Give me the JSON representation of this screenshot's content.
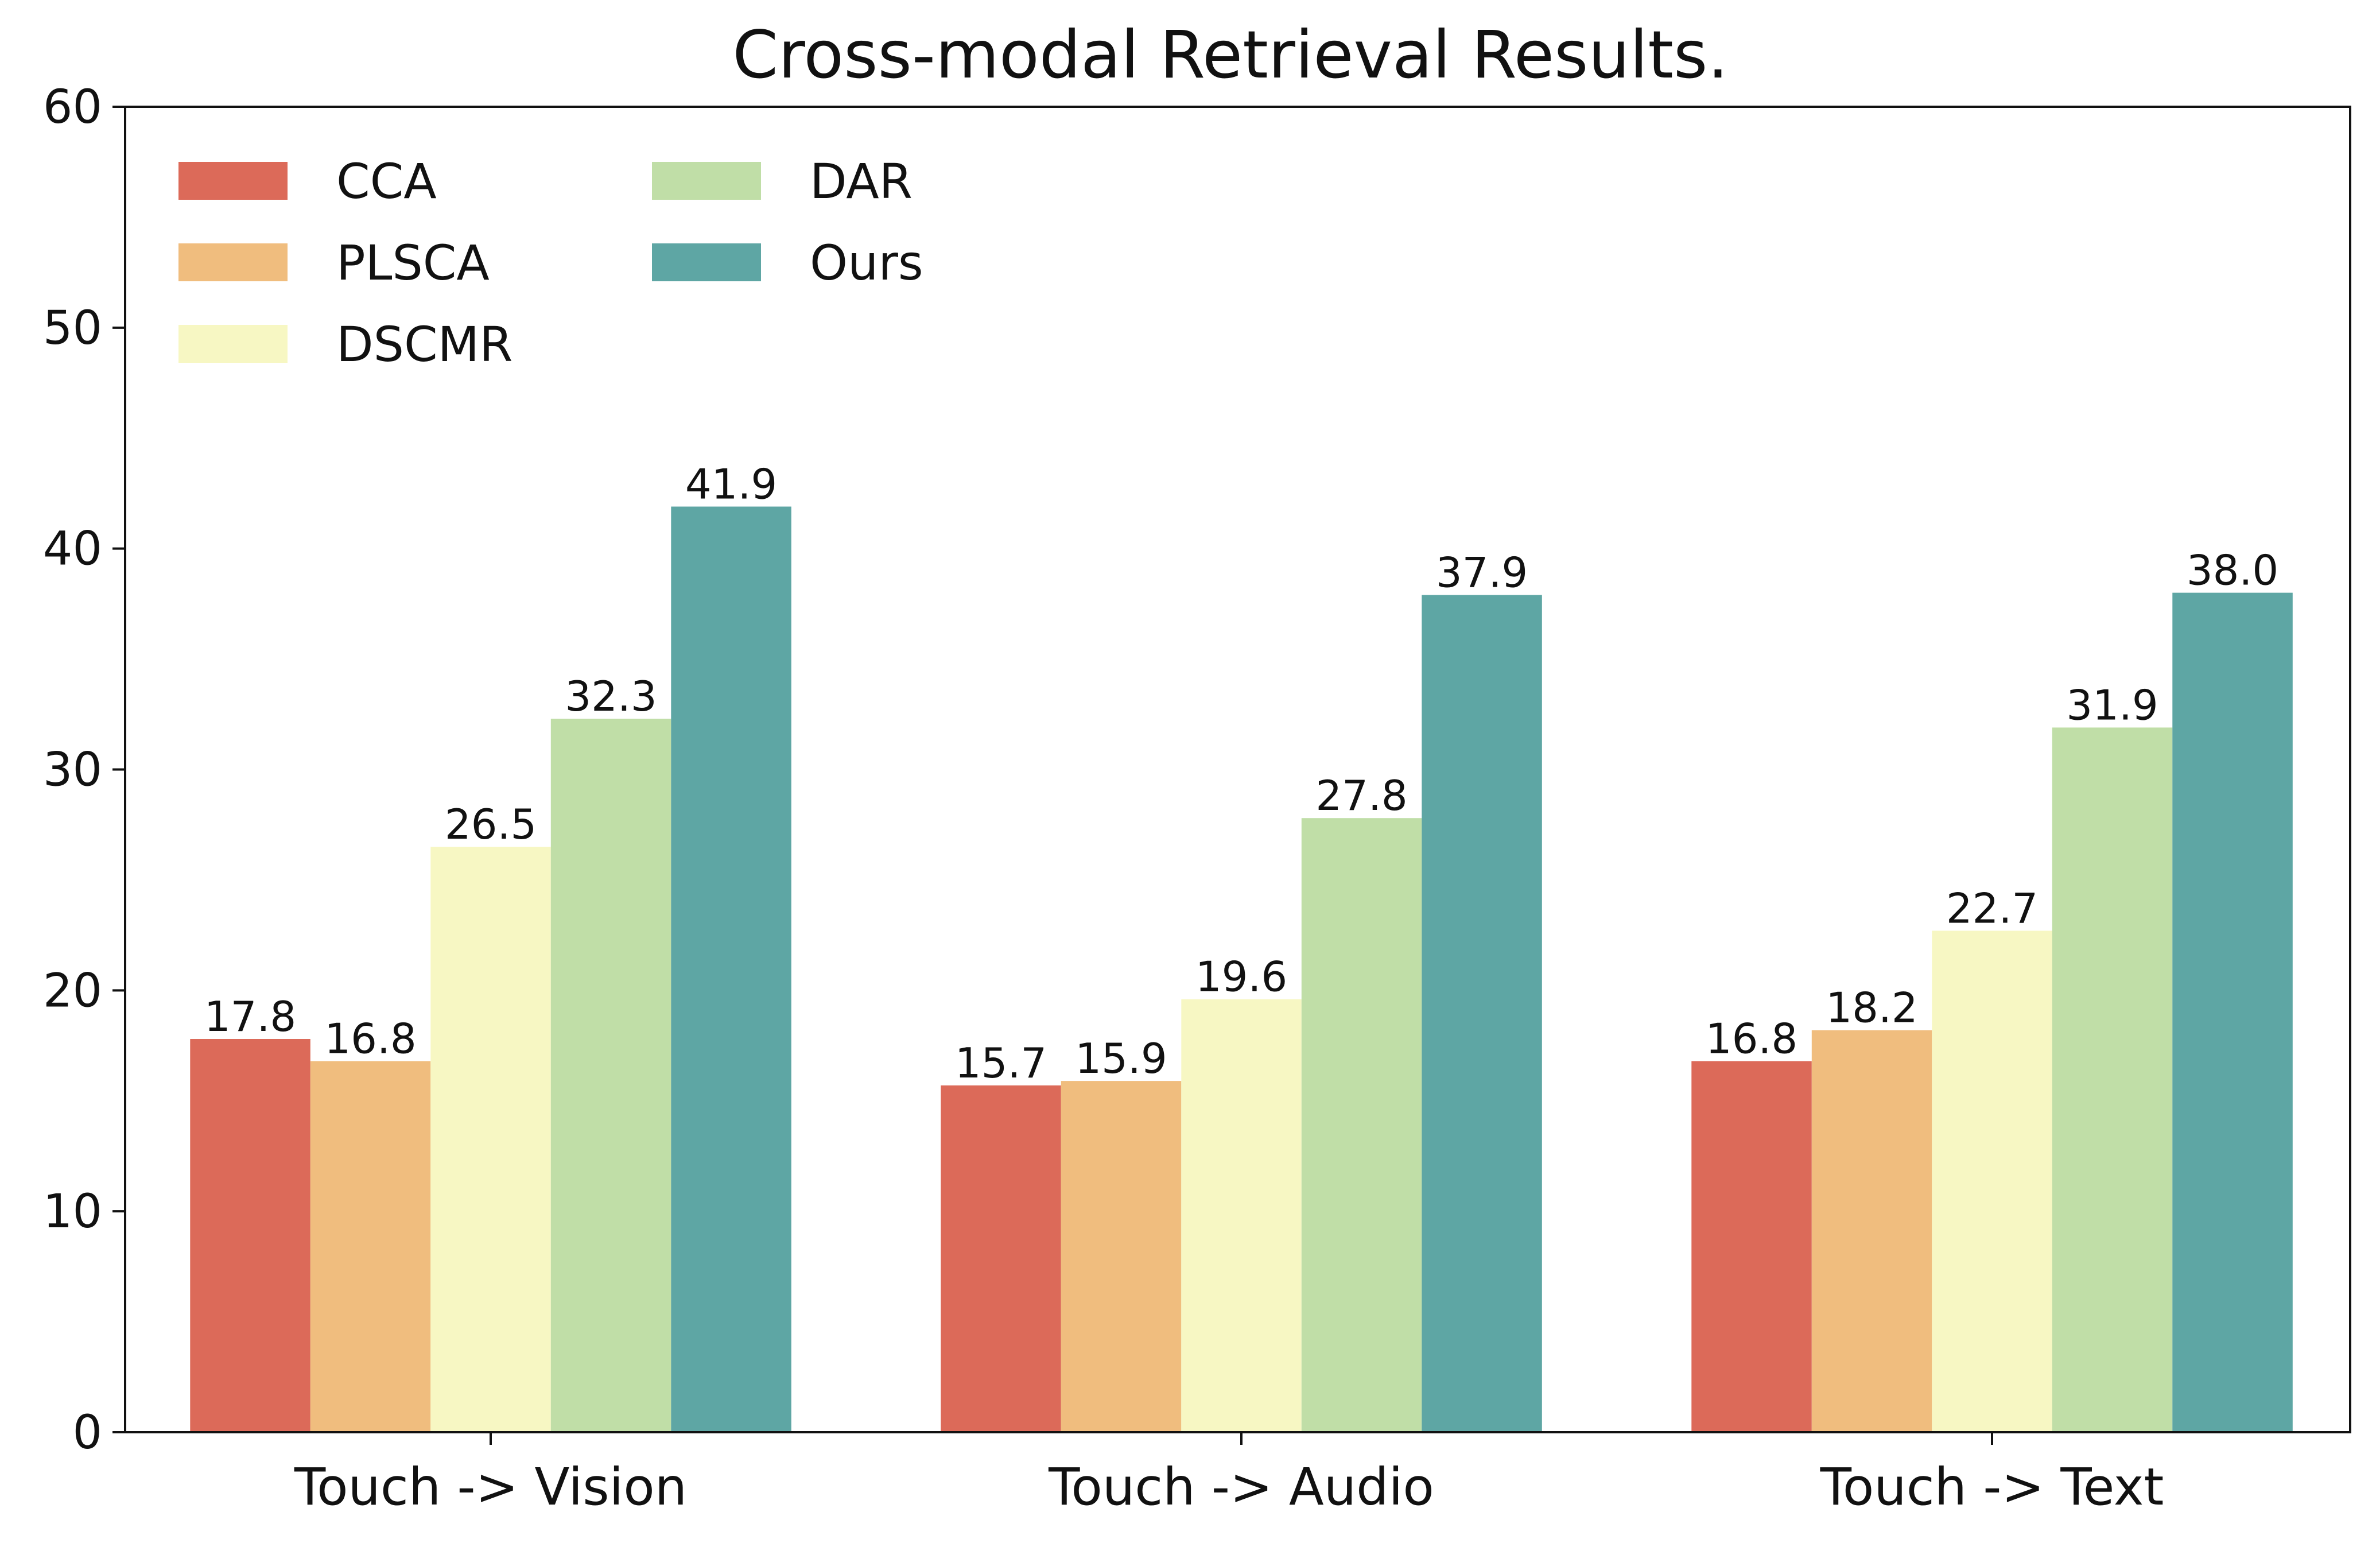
{
  "chart_data": {
    "type": "bar",
    "title": "Cross-modal Retrieval Results.",
    "xlabel": "",
    "ylabel": "",
    "ylim": [
      0,
      60
    ],
    "yticks": [
      0,
      10,
      20,
      30,
      40,
      50,
      60
    ],
    "grid": false,
    "legend_position": "top-left",
    "categories": [
      "Touch -> Vision",
      "Touch -> Audio",
      "Touch -> Text"
    ],
    "series": [
      {
        "name": "CCA",
        "color": "#dc6a59",
        "values": [
          17.8,
          15.7,
          16.8
        ],
        "labels": [
          "17.8",
          "15.7",
          "16.8"
        ]
      },
      {
        "name": "PLSCA",
        "color": "#f0bd7e",
        "values": [
          16.8,
          15.9,
          18.2
        ],
        "labels": [
          "16.8",
          "15.9",
          "18.2"
        ]
      },
      {
        "name": "DSCMR",
        "color": "#f7f7c3",
        "values": [
          26.5,
          19.6,
          22.7
        ],
        "labels": [
          "26.5",
          "19.6",
          "22.7"
        ]
      },
      {
        "name": "DAR",
        "color": "#c0dea7",
        "values": [
          32.3,
          27.8,
          31.9
        ],
        "labels": [
          "32.3",
          "27.8",
          "31.9"
        ]
      },
      {
        "name": "Ours",
        "color": "#5ea6a4",
        "values": [
          41.9,
          37.9,
          38.0
        ],
        "labels": [
          "41.9",
          "37.9",
          "38.0"
        ]
      }
    ]
  }
}
